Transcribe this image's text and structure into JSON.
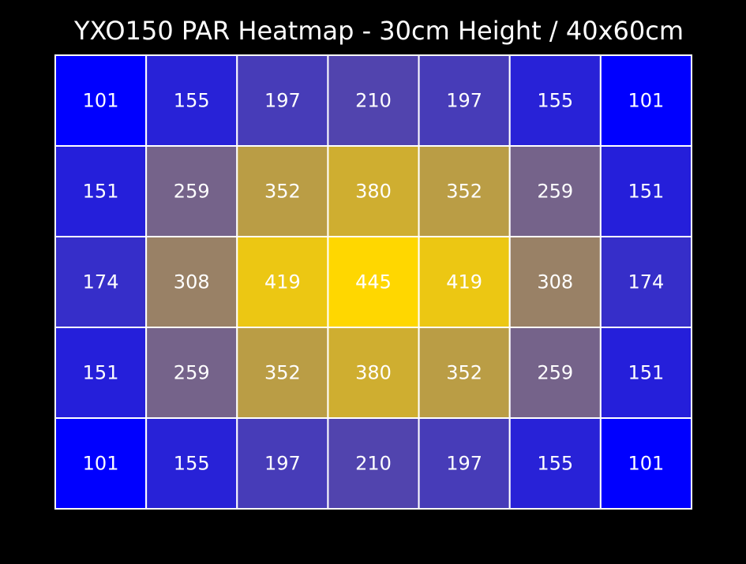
{
  "chart_data": {
    "type": "heatmap",
    "title": "YXO150 PAR Heatmap - 30cm Height / 40x60cm",
    "values": [
      [
        101,
        155,
        197,
        210,
        197,
        155,
        101
      ],
      [
        151,
        259,
        352,
        380,
        352,
        259,
        151
      ],
      [
        174,
        308,
        419,
        445,
        419,
        308,
        174
      ],
      [
        151,
        259,
        352,
        380,
        352,
        259,
        151
      ],
      [
        101,
        155,
        197,
        210,
        197,
        155,
        101
      ]
    ],
    "colormap": [
      "#0000ff",
      "#ffd700"
    ]
  }
}
